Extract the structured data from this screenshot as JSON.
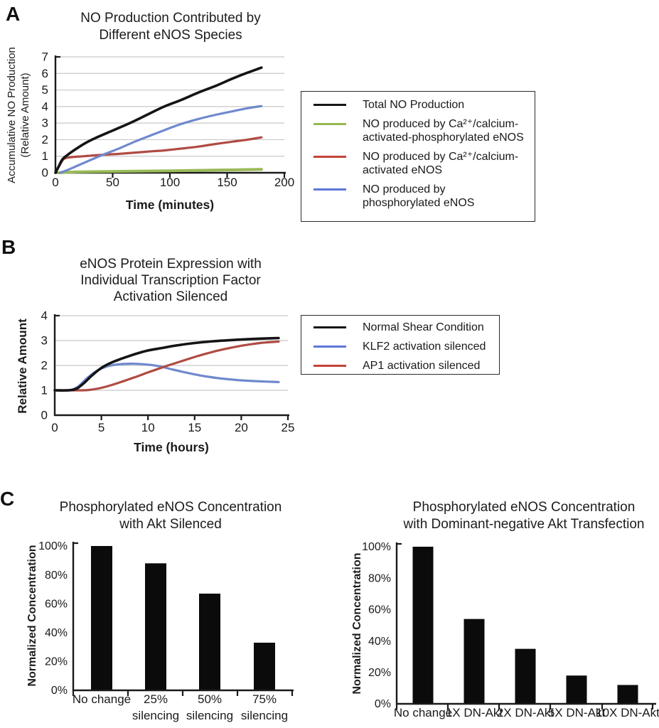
{
  "figure": {
    "panel_labels": {
      "a": "A",
      "b": "B",
      "c": "C"
    }
  },
  "panelA": {
    "legend": {
      "items": [
        {
          "label": "Total NO Production",
          "color": "#161616"
        },
        {
          "label": "NO produced by Ca²⁺/calcium-\nactivated-phosphorylated eNOS",
          "color": "#94B851"
        },
        {
          "label": "NO produced by Ca²⁺/calcium-\nactivated eNOS",
          "color": "#C2443A"
        },
        {
          "label": "NO produced by\nphosphorylated eNOS",
          "color": "#5D77DA"
        }
      ]
    }
  },
  "panelB": {
    "legend": {
      "items": [
        {
          "label": "Normal Shear Condition",
          "color": "#161616"
        },
        {
          "label": "KLF2 activation silenced",
          "color": "#5D77DA"
        },
        {
          "label": "AP1 activation silenced",
          "color": "#C2443A"
        }
      ]
    }
  },
  "chart_data": [
    {
      "id": "no-production",
      "type": "line",
      "title": "NO Production Contributed by\nDifferent eNOS Species",
      "xlabel": "Time (minutes)",
      "ylabel": "Accumulative NO Production\n(Relative Amount)",
      "xlim": [
        0,
        200
      ],
      "ylim": [
        0,
        7
      ],
      "xticks": [
        0,
        50,
        100,
        150,
        200
      ],
      "yticks": [
        0,
        1,
        2,
        3,
        4,
        5,
        6,
        7
      ],
      "grid": "horizontal",
      "grid_color": "#C8C8C8",
      "axis_color": "#1a1a1a",
      "legend_position": "right",
      "series": [
        {
          "name": "NO produced by Ca2+/calcium-activated-phosphorylated eNOS",
          "color": "#9ABA56",
          "width": 4,
          "points": [
            [
              3,
              0
            ],
            [
              20,
              0.05
            ],
            [
              50,
              0.08
            ],
            [
              95,
              0.11
            ],
            [
              140,
              0.16
            ],
            [
              180,
              0.2
            ]
          ]
        },
        {
          "name": "NO produced by Ca2+/calcium-activated eNOS",
          "color": "#B04B43",
          "width": 3.2,
          "points": [
            [
              0,
              0
            ],
            [
              4,
              0.5
            ],
            [
              7,
              0.82
            ],
            [
              10,
              0.9
            ],
            [
              15,
              0.95
            ],
            [
              25,
              1.0
            ],
            [
              40,
              1.08
            ],
            [
              55,
              1.14
            ],
            [
              70,
              1.22
            ],
            [
              85,
              1.3
            ],
            [
              95,
              1.35
            ],
            [
              110,
              1.46
            ],
            [
              125,
              1.58
            ],
            [
              140,
              1.74
            ],
            [
              155,
              1.88
            ],
            [
              168,
              2.0
            ],
            [
              180,
              2.14
            ]
          ]
        },
        {
          "name": "NO produced by phosphorylated eNOS",
          "color": "#7089CE",
          "width": 3.2,
          "points": [
            [
              4,
              0
            ],
            [
              10,
              0.15
            ],
            [
              20,
              0.45
            ],
            [
              30,
              0.75
            ],
            [
              42,
              1.1
            ],
            [
              55,
              1.45
            ],
            [
              70,
              1.9
            ],
            [
              85,
              2.3
            ],
            [
              95,
              2.57
            ],
            [
              110,
              2.95
            ],
            [
              125,
              3.25
            ],
            [
              140,
              3.5
            ],
            [
              155,
              3.72
            ],
            [
              168,
              3.9
            ],
            [
              180,
              4.03
            ]
          ]
        },
        {
          "name": "Total NO Production",
          "color": "#141414",
          "width": 3.6,
          "points": [
            [
              0,
              0
            ],
            [
              3,
              0.4
            ],
            [
              6,
              0.8
            ],
            [
              10,
              1.05
            ],
            [
              15,
              1.3
            ],
            [
              25,
              1.75
            ],
            [
              35,
              2.1
            ],
            [
              50,
              2.55
            ],
            [
              65,
              3.0
            ],
            [
              80,
              3.5
            ],
            [
              95,
              4.0
            ],
            [
              110,
              4.4
            ],
            [
              125,
              4.85
            ],
            [
              140,
              5.25
            ],
            [
              155,
              5.7
            ],
            [
              168,
              6.05
            ],
            [
              180,
              6.35
            ]
          ]
        }
      ]
    },
    {
      "id": "enos-expression",
      "type": "line",
      "title": "eNOS Protein Expression with\nIndividual Transcription Factor\nActivation Silenced",
      "xlabel": "Time (hours)",
      "ylabel": "Relative Amount",
      "xlim": [
        0,
        25
      ],
      "ylim": [
        0,
        4
      ],
      "xticks": [
        0,
        5,
        10,
        15,
        20,
        25
      ],
      "yticks": [
        0,
        1,
        2,
        3,
        4
      ],
      "grid": "horizontal",
      "grid_color": "#C8C8C8",
      "axis_color": "#1a1a1a",
      "legend_position": "right",
      "series": [
        {
          "name": "KLF2 activation silenced",
          "color": "#7089CE",
          "width": 3.2,
          "points": [
            [
              0,
              1
            ],
            [
              1.5,
              1.0
            ],
            [
              2.5,
              1.15
            ],
            [
              3.5,
              1.5
            ],
            [
              4.5,
              1.78
            ],
            [
              5.5,
              1.95
            ],
            [
              6.5,
              2.03
            ],
            [
              8,
              2.07
            ],
            [
              9.5,
              2.05
            ],
            [
              11,
              1.98
            ],
            [
              12.5,
              1.85
            ],
            [
              14,
              1.72
            ],
            [
              16,
              1.57
            ],
            [
              18,
              1.47
            ],
            [
              20,
              1.4
            ],
            [
              22,
              1.36
            ],
            [
              24,
              1.33
            ]
          ]
        },
        {
          "name": "AP1 activation silenced",
          "color": "#B04B43",
          "width": 3.2,
          "points": [
            [
              0,
              1
            ],
            [
              3,
              1.0
            ],
            [
              4,
              1.03
            ],
            [
              5,
              1.1
            ],
            [
              6,
              1.2
            ],
            [
              7,
              1.32
            ],
            [
              8,
              1.45
            ],
            [
              9,
              1.58
            ],
            [
              10,
              1.72
            ],
            [
              11,
              1.85
            ],
            [
              12,
              1.98
            ],
            [
              13,
              2.1
            ],
            [
              14,
              2.22
            ],
            [
              15,
              2.34
            ],
            [
              16,
              2.45
            ],
            [
              17,
              2.55
            ],
            [
              18,
              2.64
            ],
            [
              19,
              2.72
            ],
            [
              20,
              2.79
            ],
            [
              21,
              2.85
            ],
            [
              22,
              2.9
            ],
            [
              23,
              2.93
            ],
            [
              24,
              2.96
            ]
          ]
        },
        {
          "name": "Normal Shear Condition",
          "color": "#141414",
          "width": 3.6,
          "points": [
            [
              0,
              1
            ],
            [
              2,
              1.02
            ],
            [
              3,
              1.25
            ],
            [
              4,
              1.6
            ],
            [
              5,
              1.9
            ],
            [
              6,
              2.1
            ],
            [
              7,
              2.25
            ],
            [
              8,
              2.38
            ],
            [
              9,
              2.5
            ],
            [
              10,
              2.6
            ],
            [
              11.5,
              2.7
            ],
            [
              13,
              2.8
            ],
            [
              15,
              2.9
            ],
            [
              17,
              2.97
            ],
            [
              19,
              3.02
            ],
            [
              21,
              3.06
            ],
            [
              24,
              3.1
            ]
          ]
        }
      ]
    },
    {
      "id": "akt-silenced",
      "type": "bar",
      "title": "Phosphorylated eNOS Concentration\nwith Akt Silenced",
      "ylabel": "Normalized Concentration",
      "categories": [
        "No change",
        "25%\nsilencing",
        "50%\nsilencing",
        "75%\nsilencing"
      ],
      "values": [
        100,
        88,
        67,
        33
      ],
      "ylim": [
        0,
        100
      ],
      "yticks": [
        0,
        20,
        40,
        60,
        80,
        100
      ],
      "ytick_suffix": "%",
      "bar_color": "#0b0b0b",
      "axis_color": "#1a1a1a"
    },
    {
      "id": "dn-akt",
      "type": "bar",
      "title": "Phosphorylated eNOS Concentration\nwith Dominant-negative Akt Transfection",
      "ylabel": "Normalized Concentration",
      "categories": [
        "No change",
        "1X DN-Akt",
        "2X DN-Akt",
        "5X DN-Akt",
        "10X DN-Akt"
      ],
      "values": [
        100,
        54,
        35,
        18,
        12
      ],
      "ylim": [
        0,
        100
      ],
      "yticks": [
        0,
        20,
        40,
        60,
        80,
        100
      ],
      "ytick_suffix": "%",
      "bar_color": "#0b0b0b",
      "axis_color": "#1a1a1a"
    }
  ]
}
